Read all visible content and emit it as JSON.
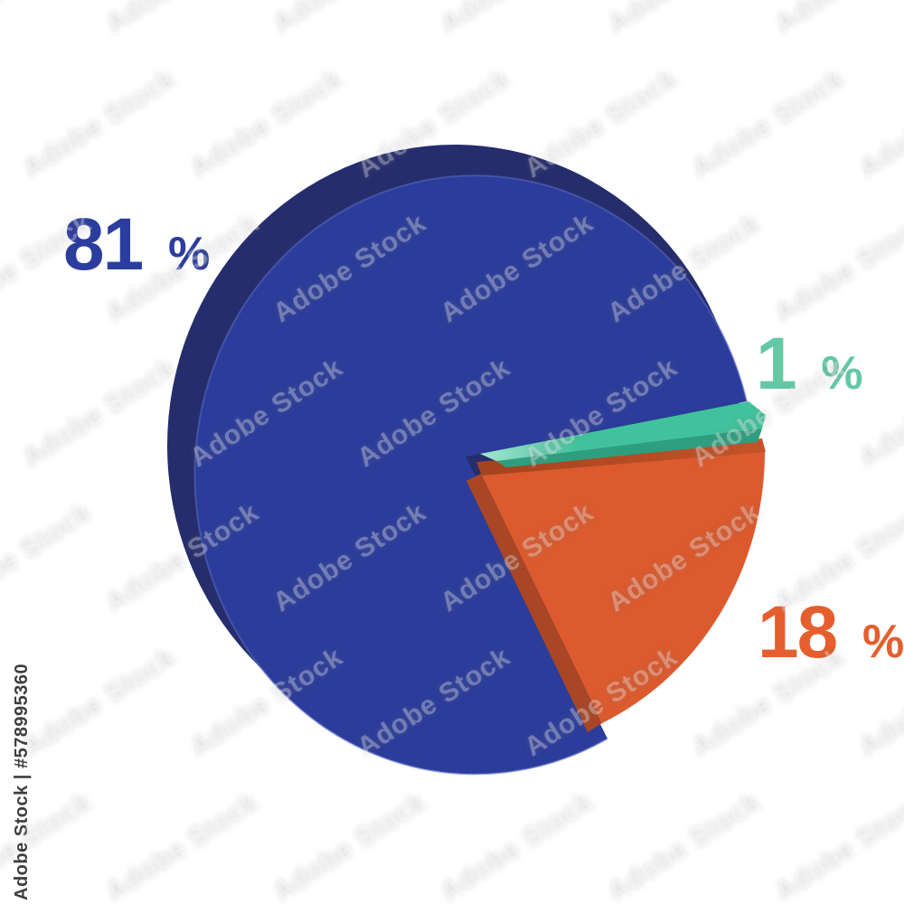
{
  "chart_data": {
    "type": "pie",
    "style": "3d-exploded",
    "labels": [
      "81%",
      "1%",
      "18%"
    ],
    "values": [
      81,
      1,
      18
    ],
    "legend": "none",
    "background": "#FFFFFF",
    "slices": [
      {
        "label": "81",
        "suffix": "%",
        "value": 81,
        "color": "#2B3C9B",
        "side_color": "#262D6D",
        "label_color": "#2B3D9E"
      },
      {
        "label": "1",
        "suffix": "%",
        "value": 1,
        "color": "#41C29C",
        "side_color": "#2E9F7E",
        "highlight_color": "#A5E5CF",
        "label_color": "#64C8A4"
      },
      {
        "label": "18",
        "suffix": "%",
        "value": 18,
        "color": "#DC5A2E",
        "side_color": "#A84626",
        "bevel_color": "#C55328",
        "bevel_dark": "#A3431F",
        "label_color": "#E55E2D"
      }
    ]
  },
  "watermark": {
    "tile_text": "Adobe Stock",
    "id_text": "Adobe Stock | #578995360",
    "id_color": "#3E3E3E"
  }
}
